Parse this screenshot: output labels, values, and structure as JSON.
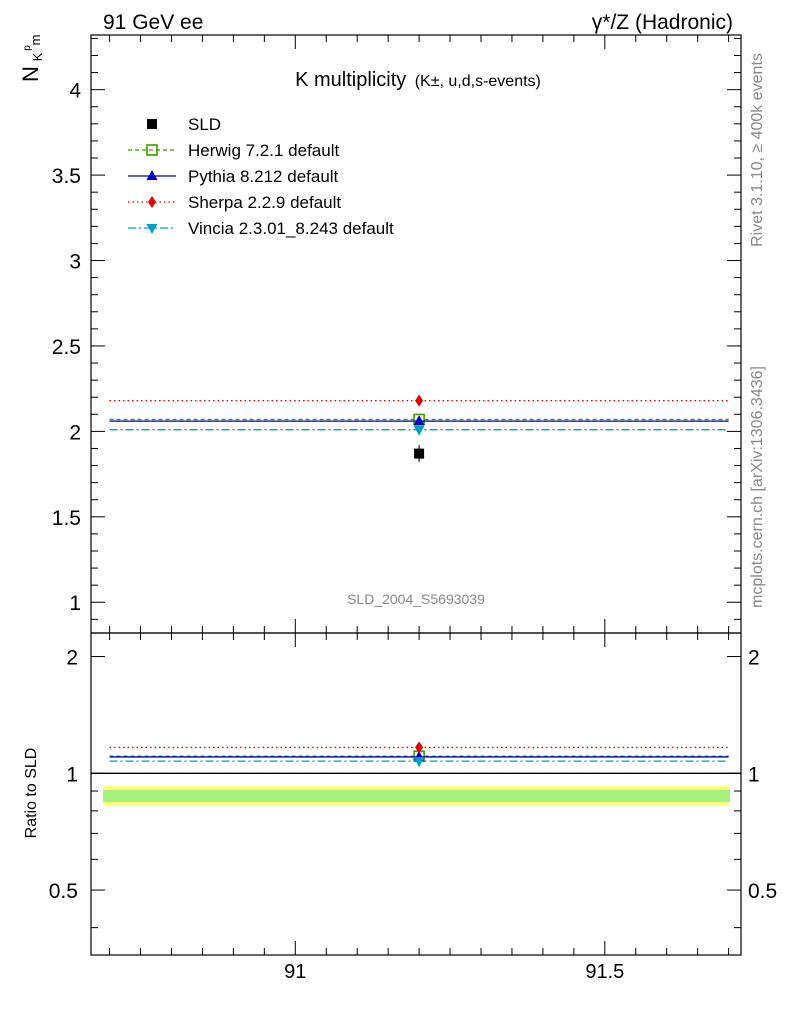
{
  "header": {
    "left": "91 GeV ee",
    "right": "γ*/Z (Hadronic)"
  },
  "side_text": {
    "rivet": "Rivet 3.1.10, ≥ 400k events",
    "mcplots": "mcplots.cern.ch [arXiv:1306.3436]"
  },
  "chart_data": {
    "type": "scatter",
    "title_main": "K multiplicity",
    "title_sub": "(K±, u,d,s-events)",
    "ylabel": "N",
    "ylabel_sub": "K",
    "ylabel_sup": "p",
    "ylabel_sub2": "m",
    "ratio_ylabel": "Ratio to SLD",
    "watermark": "SLD_2004_S5693039",
    "xlim": [
      90.67,
      91.72
    ],
    "ylim": [
      0.82,
      4.32
    ],
    "ratio_ylim": [
      0.34,
      2.3
    ],
    "x_ticks": [
      {
        "v": 91,
        "label": "91"
      },
      {
        "v": 91.5,
        "label": "91.5"
      }
    ],
    "y_ticks": [
      {
        "v": 1,
        "label": "1"
      },
      {
        "v": 1.5,
        "label": "1.5"
      },
      {
        "v": 2,
        "label": "2"
      },
      {
        "v": 2.5,
        "label": "2.5"
      },
      {
        "v": 3,
        "label": "3"
      },
      {
        "v": 3.5,
        "label": "3.5"
      },
      {
        "v": 4,
        "label": "4"
      }
    ],
    "ratio_y_ticks": [
      {
        "v": 0.5,
        "label": "0.5"
      },
      {
        "v": 1,
        "label": "1"
      },
      {
        "v": 2,
        "label": "2"
      }
    ],
    "data_x": 91.2,
    "bin": [
      90.7,
      91.7
    ],
    "data": {
      "name": "SLD",
      "y": 1.87,
      "err_inner": 0.03,
      "err_outer": 0.05
    },
    "series": [
      {
        "name": "Herwig 7.2.1 default",
        "y": 2.07,
        "ratio": 1.107,
        "color": "#3f9e00",
        "dash": "4,3",
        "marker": "open-square"
      },
      {
        "name": "Pythia 8.212 default",
        "y": 2.06,
        "ratio": 1.102,
        "color": "#0000c0",
        "dash": "",
        "marker": "triangle-up"
      },
      {
        "name": "Sherpa 2.2.9 default",
        "y": 2.18,
        "ratio": 1.166,
        "color": "#e00000",
        "dash": "1.5,3",
        "marker": "diamond"
      },
      {
        "name": "Vincia 2.3.01_8.243 default",
        "y": 2.01,
        "ratio": 1.075,
        "color": "#00a0c0",
        "dash": "8,3,2,3",
        "marker": "triangle-down"
      }
    ]
  }
}
